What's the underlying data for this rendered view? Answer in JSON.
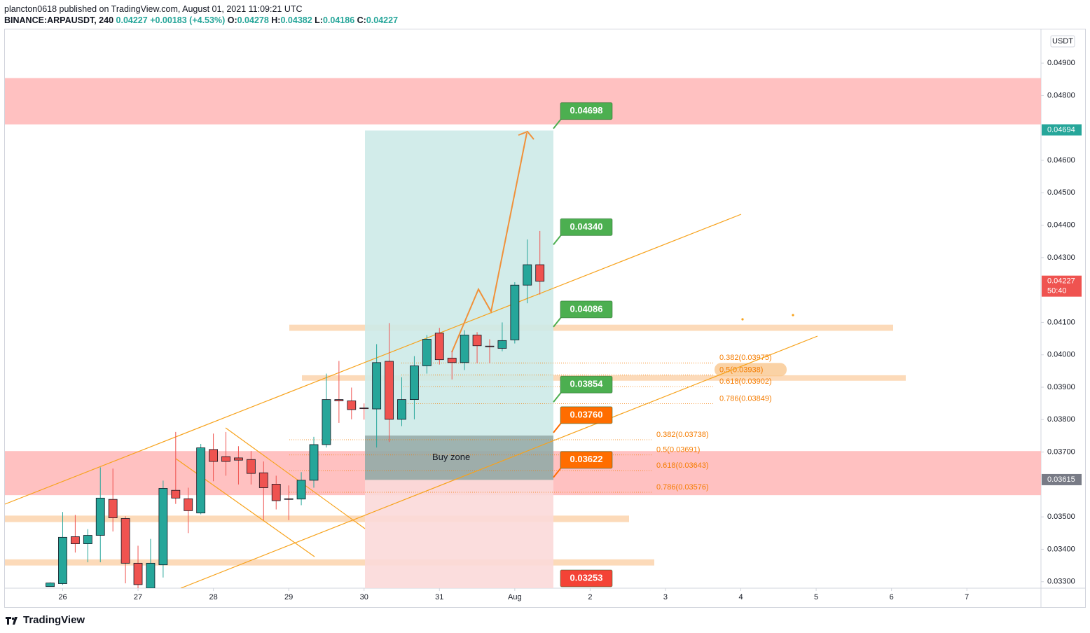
{
  "header": {
    "publisher": "plancton0618 published on TradingView.com, August 01, 2021 11:09:21 UTC",
    "symbol": "BINANCE:ARPAUSDT, 240",
    "change": "+0.00183 (+4.53%)",
    "o": "O:",
    "h": "H:",
    "l": "L:",
    "c": "C:"
  },
  "chart_data": {
    "type": "candlestick",
    "open": [
      0.03285,
      0.03294,
      0.03439,
      0.03417,
      0.03443,
      0.03554,
      0.03495,
      0.03357,
      0.0328,
      0.03352,
      0.03582,
      0.03556,
      0.03512,
      0.03708,
      0.03686,
      0.03682,
      0.03677,
      0.03636,
      0.03601,
      0.03556,
      0.03555,
      0.03613,
      0.03723,
      0.03862,
      0.03858,
      0.03836,
      0.03833,
      0.0398,
      0.03801,
      0.03862,
      0.03966,
      0.04067,
      0.0399,
      0.03976,
      0.04061,
      0.04027,
      0.0402,
      0.04046,
      0.04215,
      0.04278
    ],
    "high": [
      0.03298,
      0.03515,
      0.03506,
      0.03462,
      0.03653,
      0.03649,
      0.03502,
      0.03411,
      0.03432,
      0.03612,
      0.03762,
      0.0359,
      0.03725,
      0.03757,
      0.03762,
      0.03718,
      0.03703,
      0.03671,
      0.03627,
      0.03597,
      0.03638,
      0.03747,
      0.03942,
      0.03981,
      0.03899,
      0.0385,
      0.04033,
      0.04098,
      0.03931,
      0.03996,
      0.04061,
      0.04083,
      0.04013,
      0.04076,
      0.0407,
      0.04048,
      0.041,
      0.04224,
      0.04356,
      0.04382
    ],
    "low": [
      0.03285,
      0.0329,
      0.0339,
      0.0336,
      0.0336,
      0.03455,
      0.03295,
      0.0328,
      0.03275,
      0.03313,
      0.0354,
      0.0345,
      0.03508,
      0.0361,
      0.03627,
      0.036,
      0.036,
      0.0349,
      0.03523,
      0.0349,
      0.03536,
      0.0359,
      0.03714,
      0.0379,
      0.03801,
      0.038,
      0.03714,
      0.03731,
      0.0378,
      0.03801,
      0.03942,
      0.0397,
      0.03924,
      0.03953,
      0.03974,
      0.03974,
      0.04011,
      0.04035,
      0.04159,
      0.04186
    ],
    "close": [
      0.03296,
      0.03437,
      0.03417,
      0.03443,
      0.03558,
      0.03497,
      0.03357,
      0.03291,
      0.03357,
      0.03588,
      0.03558,
      0.03519,
      0.03713,
      0.03671,
      0.03671,
      0.03675,
      0.03634,
      0.0359,
      0.0355,
      0.03554,
      0.03613,
      0.03723,
      0.03862,
      0.03858,
      0.03831,
      0.03834,
      0.03976,
      0.03801,
      0.03862,
      0.03966,
      0.04048,
      0.03985,
      0.03976,
      0.04061,
      0.04028,
      0.04026,
      0.04044,
      0.04215,
      0.04278,
      0.04227
    ],
    "up_color": "#26a69a",
    "down_color": "#ef5350",
    "xlim": [
      -3.6,
      78.9
    ],
    "xticks": [
      {
        "value": 1,
        "label": "26"
      },
      {
        "value": 7,
        "label": "27"
      },
      {
        "value": 13,
        "label": "28"
      },
      {
        "value": 19,
        "label": "29"
      },
      {
        "value": 25,
        "label": "30"
      },
      {
        "value": 31,
        "label": "31"
      },
      {
        "value": 37,
        "label": "Aug"
      },
      {
        "value": 43,
        "label": "2"
      },
      {
        "value": 49,
        "label": "3"
      },
      {
        "value": 55,
        "label": "4"
      },
      {
        "value": 61,
        "label": "5"
      },
      {
        "value": 67,
        "label": "6"
      },
      {
        "value": 73,
        "label": "7"
      }
    ],
    "ylim": [
      0.0328,
      0.05004
    ],
    "yticks": [
      {
        "value": 0.033,
        "label": "0.03300"
      },
      {
        "value": 0.034,
        "label": "0.03400"
      },
      {
        "value": 0.035,
        "label": "0.03500"
      },
      {
        "value": 0.037,
        "label": "0.03700"
      },
      {
        "value": 0.038,
        "label": "0.03800"
      },
      {
        "value": 0.039,
        "label": "0.03900"
      },
      {
        "value": 0.04,
        "label": "0.04000"
      },
      {
        "value": 0.041,
        "label": "0.04100"
      },
      {
        "value": 0.043,
        "label": "0.04300"
      },
      {
        "value": 0.044,
        "label": "0.04400"
      },
      {
        "value": 0.045,
        "label": "0.04500"
      },
      {
        "value": 0.046,
        "label": "0.04600"
      },
      {
        "value": 0.048,
        "label": "0.04800"
      },
      {
        "value": 0.049,
        "label": "0.04900"
      }
    ],
    "y_unit": "USDT",
    "price_badges": [
      {
        "value": 0.04694,
        "label": "0.04694",
        "color": "#26a69a"
      },
      {
        "value": 0.03615,
        "label": "0.03615",
        "color": "#787b86"
      }
    ],
    "countdown": "50:40",
    "targets": [
      {
        "value": 0.04698,
        "label": "0.04698",
        "color": "#4caf50"
      },
      {
        "value": 0.0434,
        "label": "0.04340",
        "color": "#4caf50"
      },
      {
        "value": 0.04086,
        "label": "0.04086",
        "color": "#4caf50"
      },
      {
        "value": 0.03854,
        "label": "0.03854",
        "color": "#4caf50"
      },
      {
        "value": 0.0376,
        "label": "0.03760",
        "color": "#ff6d00"
      },
      {
        "value": 0.03622,
        "label": "0.03622",
        "color": "#ff6d00"
      },
      {
        "value": 0.03253,
        "label": "0.03253",
        "color": "#f44336"
      }
    ],
    "fib_upper": [
      {
        "value": 0.03975,
        "label": "0.382(0.03975)"
      },
      {
        "value": 0.03938,
        "label": "0.5(0.03938)"
      },
      {
        "value": 0.03902,
        "label": "0.618(0.03902)"
      },
      {
        "value": 0.03849,
        "label": "0.786(0.03849)"
      }
    ],
    "fib_lower": [
      {
        "value": 0.03738,
        "label": "0.382(0.03738)"
      },
      {
        "value": 0.03691,
        "label": "0.5(0.03691)"
      },
      {
        "value": 0.03643,
        "label": "0.618(0.03643)"
      },
      {
        "value": 0.03576,
        "label": "0.786(0.03576)"
      }
    ],
    "zones": [
      {
        "from": 0.04854,
        "to": 0.04711,
        "color": "#ffbaba"
      },
      {
        "from": 0.03703,
        "to": 0.03567,
        "color": "#ffbaba"
      },
      {
        "from": 0.04093,
        "to": 0.04074,
        "color": "#fbd3ad"
      },
      {
        "from": 0.03937,
        "to": 0.0392,
        "color": "#fbd3ad"
      },
      {
        "from": 0.03504,
        "to": 0.03484,
        "color": "#fbd3ad"
      },
      {
        "from": 0.03369,
        "to": 0.0335,
        "color": "#fbd3ad"
      },
      {
        "from": 0.04692,
        "to": 0.03751,
        "color": "#cdeae8"
      },
      {
        "from": 0.03751,
        "to": 0.03614,
        "color": "#93aba7"
      },
      {
        "from": 0.03614,
        "to": 0.03253,
        "color": "#fbd9d9"
      }
    ],
    "buy_zone": "Buy zone"
  },
  "footer": {
    "brand": "TradingView"
  }
}
